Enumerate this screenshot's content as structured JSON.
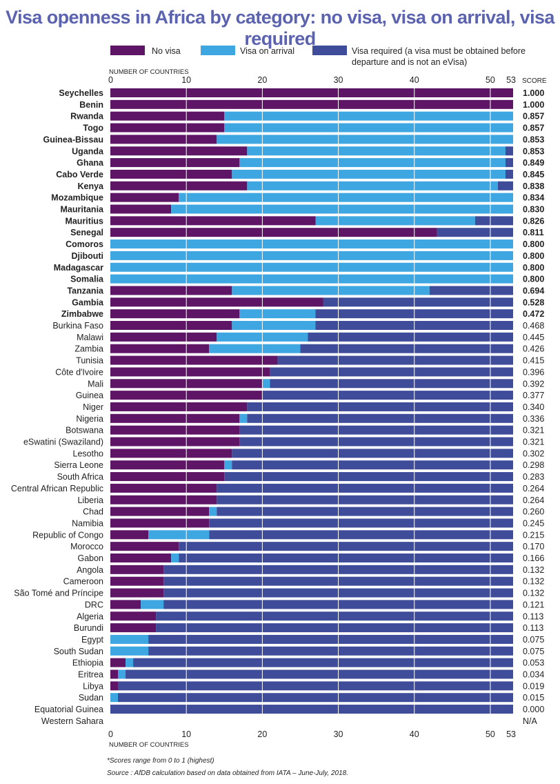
{
  "title": "Visa openness in Africa by category: no visa, visa on arrival, visa required",
  "legend": {
    "no_visa": "No visa",
    "on_arrival": "Visa on arrival",
    "required_line1": "Visa required (a visa must be obtained before",
    "required_line2": "departure and is not an eVisa)"
  },
  "colors": {
    "no_visa": "#5e1566",
    "on_arrival": "#3ea6e0",
    "required": "#3f4c9a",
    "grid": "#ffffff",
    "text": "#222222"
  },
  "footnotes": {
    "scores": "*Scores range from 0 to 1 (highest)",
    "source": "Source : AfDB calculation based on data obtained from IATA – June-July, 2018."
  },
  "chart_data": {
    "type": "bar",
    "orientation": "horizontal",
    "stacked": true,
    "title": "Visa openness in Africa by category: no visa, visa on arrival, visa required",
    "xlabel": "NUMBER OF COUNTRIES",
    "xlim": [
      0,
      53
    ],
    "xticks": [
      "0",
      "10",
      "20",
      "30",
      "40",
      "50",
      "53"
    ],
    "score_header": "SCORE",
    "grid": true,
    "legend_position": "top",
    "categories": [
      "Seychelles",
      "Benin",
      "Rwanda",
      "Togo",
      "Guinea-Bissau",
      "Uganda",
      "Ghana",
      "Cabo Verde",
      "Kenya",
      "Mozambique",
      "Mauritania",
      "Mauritius",
      "Senegal",
      "Comoros",
      "Djibouti",
      "Madagascar",
      "Somalia",
      "Tanzania",
      "Gambia",
      "Zimbabwe",
      "Burkina Faso",
      "Malawi",
      "Zambia",
      "Tunisia",
      "Côte d'Ivoire",
      "Mali",
      "Guinea",
      "Niger",
      "Nigeria",
      "Botswana",
      "eSwatini (Swaziland)",
      "Lesotho",
      "Sierra Leone",
      "South Africa",
      "Central African Republic",
      "Liberia",
      "Chad",
      "Namibia",
      "Republic of Congo",
      "Morocco",
      "Gabon",
      "Angola",
      "Cameroon",
      "São Tomé and Príncipe",
      "DRC",
      "Algeria",
      "Burundi",
      "Egypt",
      "South Sudan",
      "Ethiopia",
      "Eritrea",
      "Libya",
      "Sudan",
      "Equatorial Guinea",
      "Western Sahara"
    ],
    "bold_top_n": 20,
    "series": [
      {
        "name": "No visa",
        "values": [
          53,
          53,
          15,
          15,
          14,
          18,
          17,
          16,
          18,
          9,
          8,
          27,
          43,
          0,
          0,
          0,
          0,
          16,
          28,
          17,
          16,
          14,
          13,
          22,
          21,
          20,
          20,
          18,
          17,
          17,
          17,
          16,
          15,
          15,
          14,
          14,
          13,
          13,
          5,
          9,
          8,
          7,
          7,
          7,
          4,
          6,
          6,
          0,
          0,
          2,
          1,
          1,
          0,
          0,
          null
        ]
      },
      {
        "name": "Visa on arrival",
        "values": [
          0,
          0,
          38,
          38,
          39,
          34,
          35,
          36,
          33,
          44,
          45,
          21,
          0,
          53,
          53,
          53,
          53,
          26,
          0,
          10,
          11,
          12,
          12,
          0,
          0,
          1,
          0,
          0,
          1,
          0,
          0,
          0,
          1,
          0,
          0,
          0,
          1,
          0,
          8,
          0,
          1,
          0,
          0,
          0,
          3,
          0,
          0,
          5,
          5,
          1,
          1,
          0,
          1,
          0,
          null
        ]
      },
      {
        "name": "Visa required (a visa must be obtained before departure and is not an eVisa)",
        "values": [
          0,
          0,
          0,
          0,
          0,
          1,
          1,
          1,
          2,
          0,
          0,
          5,
          10,
          0,
          0,
          0,
          0,
          11,
          25,
          26,
          26,
          27,
          28,
          31,
          32,
          32,
          33,
          35,
          35,
          36,
          36,
          37,
          37,
          38,
          39,
          39,
          39,
          40,
          40,
          44,
          44,
          46,
          46,
          46,
          46,
          47,
          47,
          48,
          48,
          50,
          51,
          52,
          52,
          53,
          null
        ]
      }
    ],
    "scores": [
      "1.000",
      "1.000",
      "0.857",
      "0.857",
      "0.853",
      "0.853",
      "0.849",
      "0.845",
      "0.838",
      "0.834",
      "0.830",
      "0.826",
      "0.811",
      "0.800",
      "0.800",
      "0.800",
      "0.800",
      "0.694",
      "0.528",
      "0.472",
      "0.468",
      "0.445",
      "0.426",
      "0.415",
      "0.396",
      "0.392",
      "0.377",
      "0.340",
      "0.336",
      "0.321",
      "0.321",
      "0.302",
      "0.298",
      "0.283",
      "0.264",
      "0.264",
      "0.260",
      "0.245",
      "0.215",
      "0.170",
      "0.166",
      "0.132",
      "0.132",
      "0.132",
      "0.121",
      "0.113",
      "0.113",
      "0.075",
      "0.075",
      "0.053",
      "0.034",
      "0.019",
      "0.015",
      "0.000",
      "N/A"
    ]
  }
}
